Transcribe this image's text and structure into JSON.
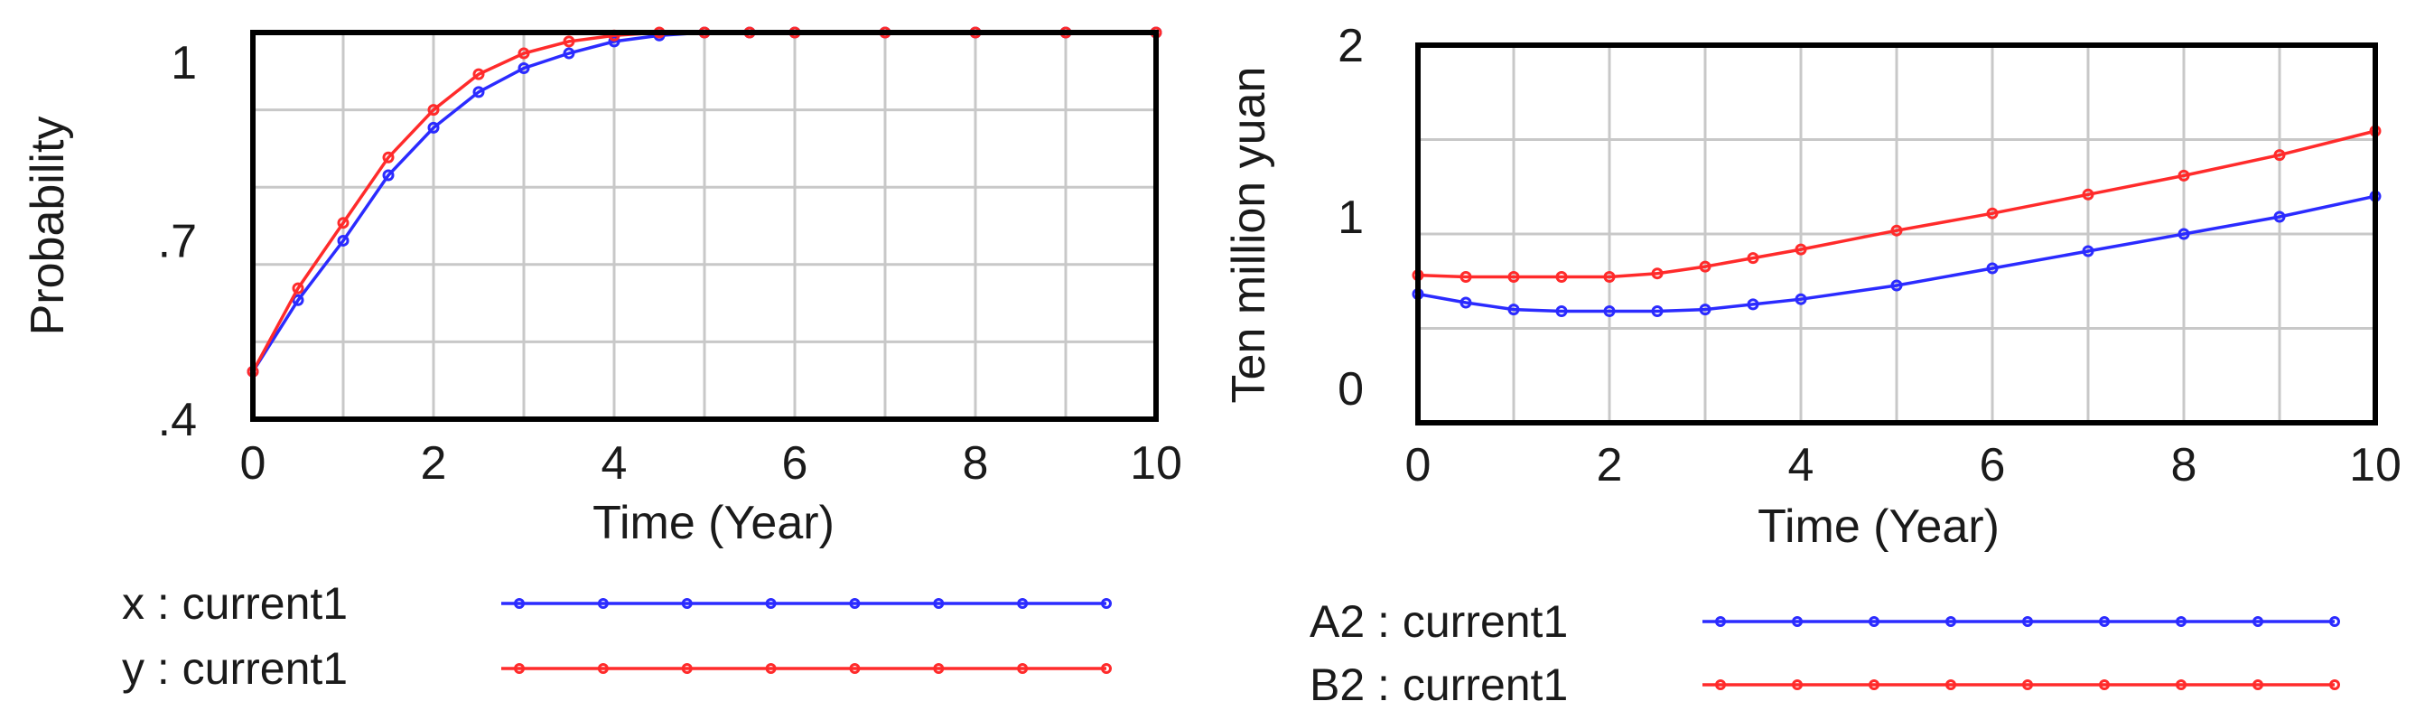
{
  "chart_data": [
    {
      "type": "line",
      "title": "",
      "xlabel": "Time (Year)",
      "ylabel": "Probability",
      "xlim": [
        0,
        10
      ],
      "ylim": [
        0.4,
        1.05
      ],
      "x_ticks": [
        0,
        2,
        4,
        6,
        8,
        10
      ],
      "x_tick_labels": [
        "0",
        "2",
        "4",
        "6",
        "8",
        "10"
      ],
      "y_ticks": [
        0.4,
        0.7,
        1.0
      ],
      "y_tick_labels": [
        ".4",
        ".7",
        "1"
      ],
      "grid": true,
      "legend_position": "below",
      "series": [
        {
          "name": "x : current1",
          "color": "#2b2bff",
          "x": [
            0,
            0.5,
            1,
            1.5,
            2,
            2.5,
            3,
            3.5,
            4,
            4.5,
            5,
            5.5,
            6,
            7,
            8,
            9,
            10
          ],
          "y": [
            0.48,
            0.6,
            0.7,
            0.81,
            0.89,
            0.95,
            0.99,
            1.015,
            1.035,
            1.045,
            1.05,
            1.05,
            1.05,
            1.05,
            1.05,
            1.05,
            1.05
          ]
        },
        {
          "name": "y : current1",
          "color": "#ff2b2b",
          "x": [
            0,
            0.5,
            1,
            1.5,
            2,
            2.5,
            3,
            3.5,
            4,
            4.5,
            5,
            5.5,
            6,
            7,
            8,
            9,
            10
          ],
          "y": [
            0.48,
            0.62,
            0.73,
            0.84,
            0.92,
            0.98,
            1.015,
            1.035,
            1.045,
            1.05,
            1.05,
            1.05,
            1.05,
            1.05,
            1.05,
            1.05,
            1.05
          ]
        }
      ]
    },
    {
      "type": "line",
      "title": "",
      "xlabel": "Time (Year)",
      "ylabel": "Ten million yuan",
      "xlim": [
        0,
        10
      ],
      "ylim": [
        -0.2,
        2.0
      ],
      "x_ticks": [
        0,
        2,
        4,
        6,
        8,
        10
      ],
      "x_tick_labels": [
        "0",
        "2",
        "4",
        "6",
        "8",
        "10"
      ],
      "y_ticks": [
        0,
        1,
        2
      ],
      "y_tick_labels": [
        "0",
        "1",
        "2"
      ],
      "grid": true,
      "legend_position": "below",
      "series": [
        {
          "name": "A2 : current1",
          "color": "#2b2bff",
          "x": [
            0,
            0.5,
            1,
            1.5,
            2,
            2.5,
            3,
            3.5,
            4,
            5,
            6,
            7,
            8,
            9,
            10
          ],
          "y": [
            0.55,
            0.5,
            0.46,
            0.45,
            0.45,
            0.45,
            0.46,
            0.49,
            0.52,
            0.6,
            0.7,
            0.8,
            0.9,
            1.0,
            1.12
          ]
        },
        {
          "name": "B2 : current1",
          "color": "#ff2b2b",
          "x": [
            0,
            0.5,
            1,
            1.5,
            2,
            2.5,
            3,
            3.5,
            4,
            5,
            6,
            7,
            8,
            9,
            10
          ],
          "y": [
            0.66,
            0.65,
            0.65,
            0.65,
            0.65,
            0.67,
            0.71,
            0.76,
            0.81,
            0.92,
            1.02,
            1.13,
            1.24,
            1.36,
            1.5
          ]
        }
      ]
    }
  ]
}
